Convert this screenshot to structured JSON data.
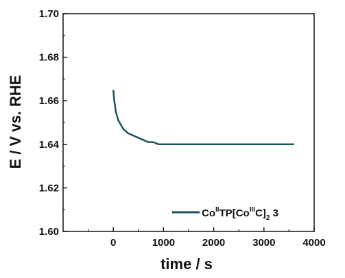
{
  "chart_data": {
    "type": "line",
    "title": "",
    "xlabel": "time / s",
    "ylabel": "E / V vs. RHE",
    "xlim": [
      -1000,
      4000
    ],
    "ylim": [
      1.6,
      1.7
    ],
    "x_ticks": [
      0,
      1000,
      2000,
      3000,
      4000
    ],
    "x_tick_labels": [
      "0",
      "1000",
      "2000",
      "3000",
      "4000"
    ],
    "y_ticks": [
      1.6,
      1.62,
      1.64,
      1.66,
      1.68,
      1.7
    ],
    "y_tick_labels": [
      "1.60",
      "1.62",
      "1.64",
      "1.66",
      "1.68",
      "1.70"
    ],
    "grid": false,
    "legend": {
      "placement": "bottom-right"
    },
    "series": [
      {
        "name": "CoIITP[CoIIIC]2 3",
        "legend_parts": {
          "base1": "Co",
          "sup1": "II",
          "base2": "TP[Co",
          "sup2": "III",
          "base3": "C]",
          "sub": "2",
          "tail": " 3"
        },
        "color": "#1a535c",
        "x": [
          0,
          20,
          50,
          100,
          150,
          200,
          250,
          300,
          400,
          500,
          600,
          700,
          800,
          900,
          1000,
          1200,
          1400,
          1600,
          1800,
          2000,
          2200,
          2400,
          2600,
          2800,
          3000,
          3200,
          3400,
          3600
        ],
        "y": [
          1.665,
          1.66,
          1.655,
          1.651,
          1.649,
          1.647,
          1.646,
          1.645,
          1.644,
          1.643,
          1.642,
          1.641,
          1.641,
          1.64,
          1.64,
          1.64,
          1.64,
          1.64,
          1.64,
          1.64,
          1.64,
          1.64,
          1.64,
          1.64,
          1.64,
          1.64,
          1.64,
          1.64
        ]
      }
    ]
  }
}
